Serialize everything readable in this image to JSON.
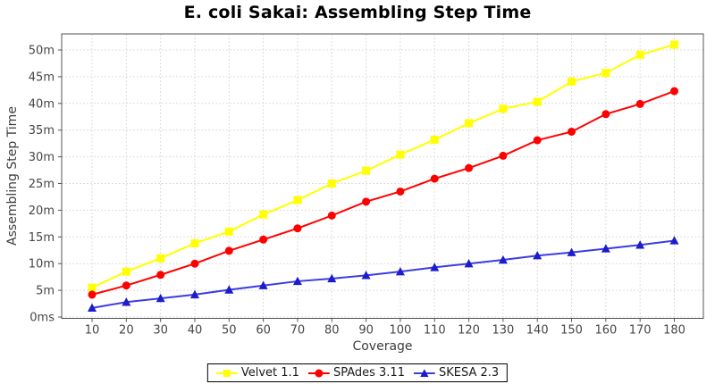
{
  "colors": {
    "background": "#ffffff",
    "grid": "#dcdcdc",
    "plot_border": "#555555",
    "tick_text": "#464646",
    "axis_label_text": "#3c3c3c",
    "title_text": "#000000",
    "velvet": "#ffff00",
    "spades": "#ff0000",
    "skesa": "#1c1ccc"
  },
  "chart_data": {
    "type": "line",
    "title": "E. coli Sakai: Assembling Step Time",
    "xlabel": "Coverage",
    "ylabel": "Assembling Step Time",
    "grid": true,
    "legend_position": "bottom-center",
    "y_unit": "minutes",
    "x": [
      10,
      20,
      30,
      40,
      50,
      60,
      70,
      80,
      90,
      100,
      110,
      120,
      130,
      140,
      150,
      160,
      170,
      180
    ],
    "xlim": [
      1,
      189
    ],
    "ylim": [
      0,
      53
    ],
    "y_tick_labels": [
      "0ms",
      "5m",
      "10m",
      "15m",
      "20m",
      "25m",
      "30m",
      "35m",
      "40m",
      "45m",
      "50m"
    ],
    "y_tick_values": [
      0,
      5,
      10,
      15,
      20,
      25,
      30,
      35,
      40,
      45,
      50
    ],
    "series": [
      {
        "name": "Velvet 1.1",
        "marker": "square",
        "color": "#ffff00",
        "line_color": "#ffff00",
        "values": [
          5.5,
          8.5,
          11.0,
          13.8,
          16.0,
          19.2,
          21.9,
          25.0,
          27.4,
          30.4,
          33.2,
          36.3,
          39.0,
          40.3,
          44.1,
          45.7,
          49.1,
          51.0
        ]
      },
      {
        "name": "SPAdes 3.11",
        "marker": "circle",
        "color": "#ff0000",
        "line_color": "#ff0000",
        "values": [
          4.2,
          5.9,
          7.9,
          10.0,
          12.4,
          14.5,
          16.6,
          19.0,
          21.6,
          23.5,
          25.9,
          27.9,
          30.2,
          33.1,
          34.7,
          38.0,
          39.9,
          42.3
        ]
      },
      {
        "name": "SKESA 2.3",
        "marker": "triangle",
        "color": "#1c1ccc",
        "line_color": "#3c3ce0",
        "values": [
          1.7,
          2.8,
          3.5,
          4.2,
          5.1,
          5.9,
          6.7,
          7.2,
          7.8,
          8.5,
          9.3,
          10.0,
          10.7,
          11.5,
          12.1,
          12.8,
          13.5,
          14.3
        ]
      }
    ]
  }
}
